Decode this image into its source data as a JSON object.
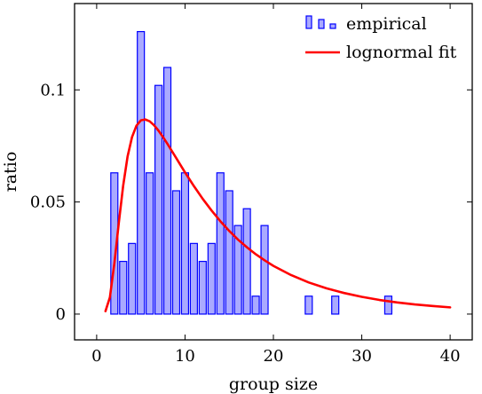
{
  "chart_data": {
    "type": "bar",
    "xlabel": "group size",
    "ylabel": "ratio",
    "xlim": [
      -2.5,
      42.5
    ],
    "ylim": [
      -0.0115,
      0.1385
    ],
    "x_ticks": [
      0,
      10,
      20,
      30,
      40
    ],
    "x_tick_labels": [
      "0",
      "10",
      "20",
      "30",
      "40"
    ],
    "y_ticks": [
      0,
      0.05,
      0.1
    ],
    "y_tick_labels": [
      "0",
      "0.05",
      "0.1"
    ],
    "grid": false,
    "legend_position": "top-right",
    "series": [
      {
        "name": "empirical",
        "kind": "bar",
        "bar_width": 0.8,
        "color": "#0000ff",
        "fill": "#aaaaff",
        "x": [
          2,
          3,
          4,
          5,
          6,
          7,
          8,
          9,
          10,
          11,
          12,
          13,
          14,
          15,
          16,
          17,
          18,
          19,
          24,
          27,
          33
        ],
        "values": [
          0.063,
          0.0235,
          0.0315,
          0.126,
          0.063,
          0.102,
          0.11,
          0.055,
          0.063,
          0.0315,
          0.0235,
          0.0315,
          0.063,
          0.055,
          0.0395,
          0.047,
          0.008,
          0.0395,
          0.008,
          0.008,
          0.008
        ]
      },
      {
        "name": "lognormal fit",
        "kind": "line",
        "color": "#ff0000",
        "x": [
          1,
          1.5,
          2,
          2.5,
          3,
          3.5,
          4,
          4.5,
          5,
          5.5,
          6,
          6.5,
          7,
          7.5,
          8,
          8.5,
          9,
          10,
          11,
          12,
          13,
          14,
          15,
          16,
          17,
          18,
          19,
          20,
          22,
          24,
          26,
          28,
          30,
          32,
          34,
          36,
          38,
          40
        ],
        "values": [
          0.0013,
          0.0075,
          0.0225,
          0.0405,
          0.0573,
          0.0703,
          0.0789,
          0.084,
          0.0864,
          0.0868,
          0.086,
          0.0842,
          0.0818,
          0.079,
          0.076,
          0.0728,
          0.0696,
          0.0632,
          0.0571,
          0.0514,
          0.0462,
          0.0414,
          0.0371,
          0.0332,
          0.0298,
          0.0267,
          0.024,
          0.0215,
          0.0174,
          0.0141,
          0.0115,
          0.0094,
          0.0077,
          0.0063,
          0.0052,
          0.0043,
          0.0036,
          0.003
        ]
      }
    ]
  }
}
